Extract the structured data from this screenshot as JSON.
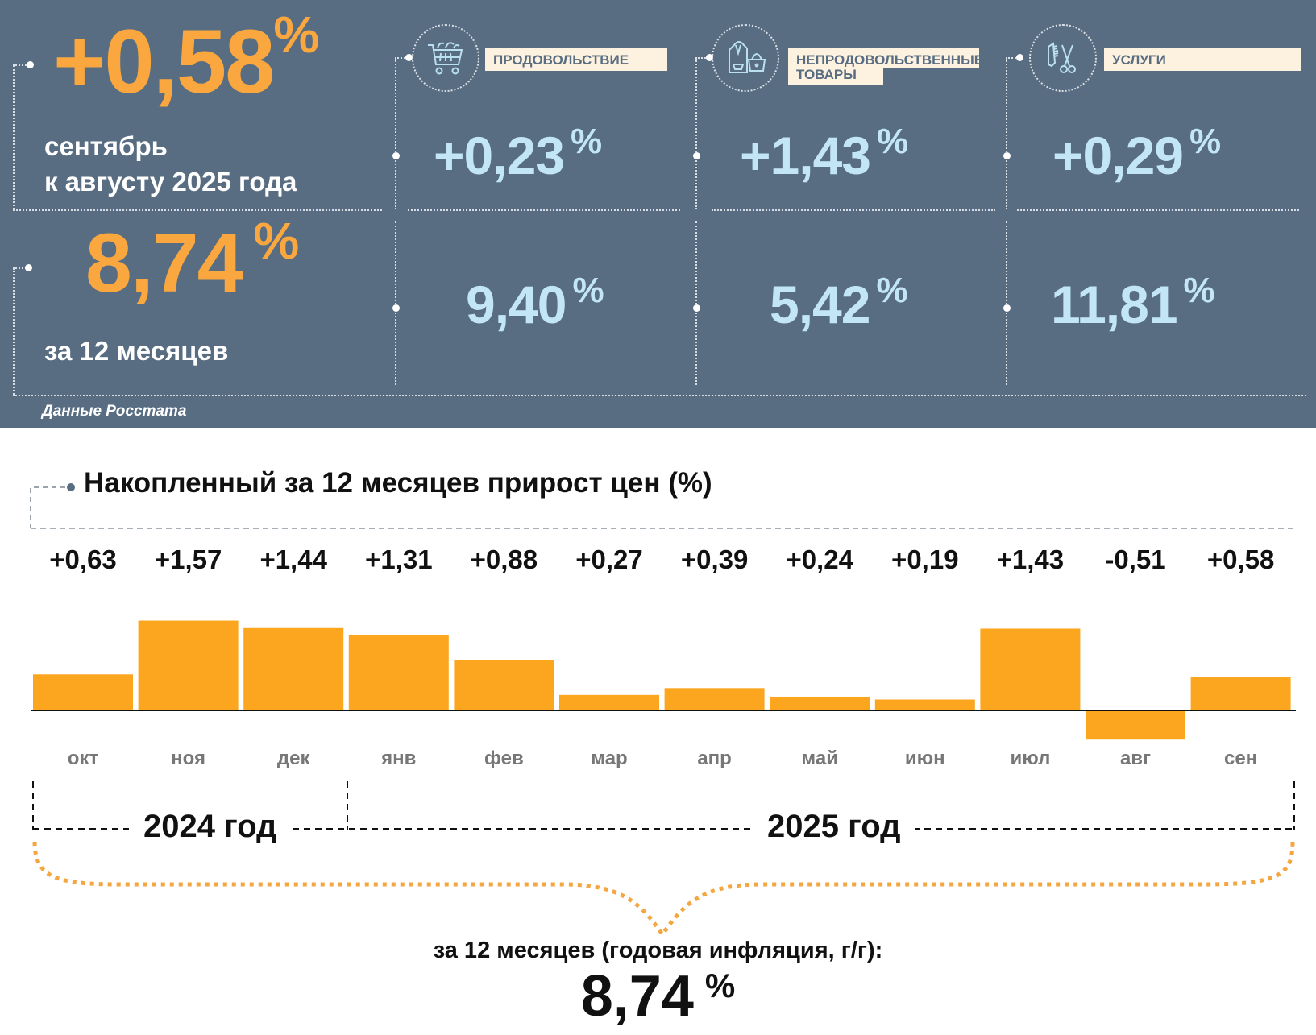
{
  "summary": {
    "monthly": {
      "value": "+0,58",
      "unit": "%",
      "label_line1": "сентябрь",
      "label_line2": "к августу 2025 года"
    },
    "annual": {
      "value": "8,74",
      "unit": "%",
      "label": "за 12 месяцев"
    },
    "source": "Данные Росстата"
  },
  "categories": [
    {
      "name": "ПРОДОВОЛЬСТВИЕ",
      "name_line2": "",
      "icon": "shopping-cart-icon",
      "monthly": "+0,23",
      "annual": "9,40",
      "unit": "%"
    },
    {
      "name": "НЕПРОДОВОЛЬСТВЕННЫЕ",
      "name_line2": "ТОВАРЫ",
      "icon": "hoodie-handbag-icon",
      "monthly": "+1,43",
      "annual": "5,42",
      "unit": "%"
    },
    {
      "name": "УСЛУГИ",
      "name_line2": "",
      "icon": "comb-scissors-icon",
      "monthly": "+0,29",
      "annual": "11,81",
      "unit": "%"
    }
  ],
  "colors": {
    "panel_bg": "#586d82",
    "accent_orange": "#f9a73e",
    "bar_orange": "#fca61f",
    "value_blue": "#c2e6f6",
    "label_bg": "#fdf1df"
  },
  "chart_data": {
    "type": "bar",
    "title": "Накопленный за 12 месяцев прирост цен (%)",
    "categories": [
      "окт",
      "ноя",
      "дек",
      "янв",
      "фев",
      "мар",
      "апр",
      "май",
      "июн",
      "июл",
      "авг",
      "сен"
    ],
    "values": [
      0.63,
      1.57,
      1.44,
      1.31,
      0.88,
      0.27,
      0.39,
      0.24,
      0.19,
      1.43,
      -0.51,
      0.58
    ],
    "value_labels": [
      "+0,63",
      "+1,57",
      "+1,44",
      "+1,31",
      "+0,88",
      "+0,27",
      "+0,39",
      "+0,24",
      "+0,19",
      "+1,43",
      "-0,51",
      "+0,58"
    ],
    "year_groups": [
      {
        "label": "2024 год",
        "months": [
          "окт",
          "ноя",
          "дек"
        ]
      },
      {
        "label": "2025 год",
        "months": [
          "янв",
          "фев",
          "мар",
          "апр",
          "май",
          "июн",
          "июл",
          "авг",
          "сен"
        ]
      }
    ],
    "xlabel": "",
    "ylabel": "",
    "grid": false,
    "total_caption": "за 12 месяцев (годовая инфляция, г/г):",
    "total_value": "8,74",
    "total_unit": "%"
  }
}
